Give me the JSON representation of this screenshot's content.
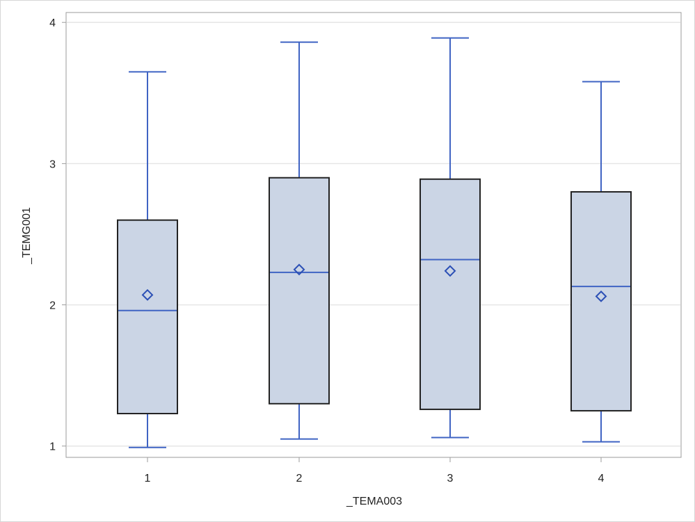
{
  "chart_data": {
    "type": "box",
    "xlabel": "_TEMA003",
    "ylabel": "_TEMG001",
    "categories": [
      "1",
      "2",
      "3",
      "4"
    ],
    "ylim": [
      0.92,
      4.07
    ],
    "yticks": [
      "1",
      "2",
      "3",
      "4"
    ],
    "grid": true,
    "legend": "none",
    "boxes": [
      {
        "category": "1",
        "min": 0.99,
        "q1": 1.23,
        "median": 1.96,
        "mean": 2.07,
        "q3": 2.6,
        "max": 3.65
      },
      {
        "category": "2",
        "min": 1.05,
        "q1": 1.3,
        "median": 2.23,
        "mean": 2.25,
        "q3": 2.9,
        "max": 3.86
      },
      {
        "category": "3",
        "min": 1.06,
        "q1": 1.26,
        "median": 2.32,
        "mean": 2.24,
        "q3": 2.89,
        "max": 3.89
      },
      {
        "category": "4",
        "min": 1.03,
        "q1": 1.25,
        "median": 2.13,
        "mean": 2.06,
        "q3": 2.8,
        "max": 3.58
      }
    ],
    "colors": {
      "box_fill": "#cbd5e5",
      "box_border": "#222222",
      "whisker": "#3f63c3",
      "median": "#3f63c3",
      "mean_marker": "#2b4fb5",
      "grid": "#e6e6e6",
      "axis": "#9b9b9b"
    }
  }
}
